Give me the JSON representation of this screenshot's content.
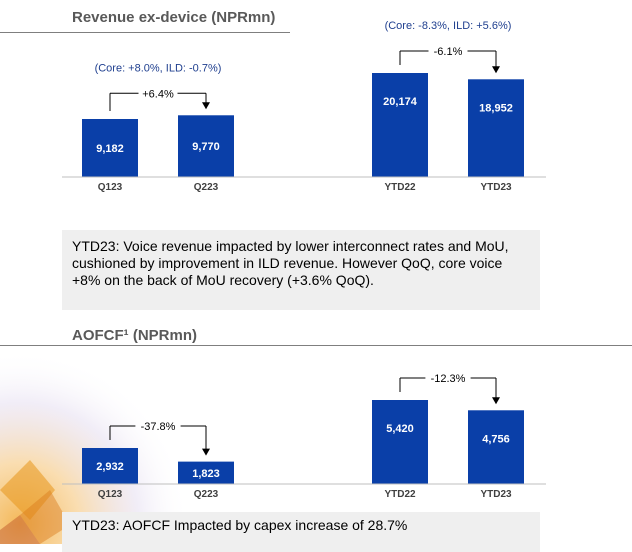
{
  "header_strip": "",
  "sections": [
    {
      "title": "Revenue ex-device (NPRmn)",
      "comment": "YTD23: Voice revenue impacted by lower interconnect rates and MoU, cushioned by improvement in ILD revenue. However QoQ, core voice +8% on the back of MoU recovery (+3.6% QoQ)."
    },
    {
      "title": "AOFCF¹ (NPRmn)",
      "comment": "YTD23: AOFCF Impacted by capex increase of 28.7%"
    }
  ],
  "colors": {
    "bar": "#0a3fa8",
    "bar_label": "#ffffff",
    "note": "#1f3f8f",
    "arrow": "#000000",
    "title": "#595959"
  },
  "chart_data": [
    {
      "type": "bar",
      "title": "Revenue ex-device (NPRmn)",
      "categories": [
        "Q123",
        "Q223",
        "YTD22",
        "YTD23"
      ],
      "values": [
        9182,
        9770,
        20174,
        18952
      ],
      "value_labels": [
        "9,182",
        "9,770",
        "20,174",
        "18,952"
      ],
      "changes": [
        {
          "from": "Q123",
          "to": "Q223",
          "label": "+6.4%",
          "note": "(Core: +8.0%, ILD: -0.7%)"
        },
        {
          "from": "YTD22",
          "to": "YTD23",
          "label": "-6.1%",
          "note": "(Core: -8.3%, ILD: +5.6%)"
        }
      ]
    },
    {
      "type": "bar",
      "title": "AOFCF¹ (NPRmn)",
      "categories": [
        "Q123",
        "Q223",
        "YTD22",
        "YTD23"
      ],
      "values": [
        2932,
        1823,
        5420,
        4756
      ],
      "value_labels": [
        "2,932",
        "1,823",
        "5,420",
        "4,756"
      ],
      "changes": [
        {
          "from": "Q123",
          "to": "Q223",
          "label": "-37.8%",
          "note": ""
        },
        {
          "from": "YTD22",
          "to": "YTD23",
          "label": "-12.3%",
          "note": ""
        }
      ]
    }
  ]
}
